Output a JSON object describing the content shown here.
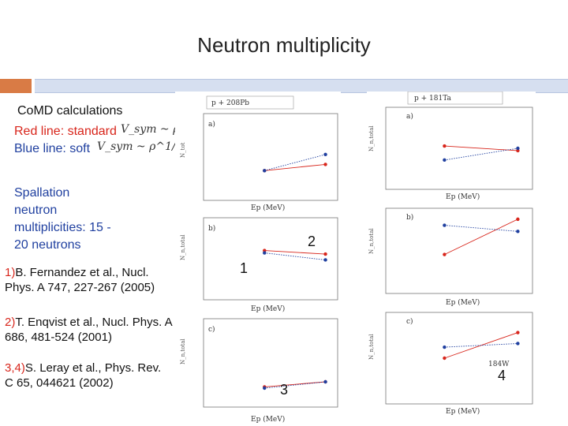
{
  "slide": {
    "title": "Neutron multiplicity",
    "model": "CoMD calculations",
    "red_line": "Red line: standard",
    "blue_line": "Blue line: soft",
    "spallation": [
      "Spallation",
      "neutron",
      "multiplicities: 15 -",
      "20 neutrons"
    ],
    "refs": [
      {
        "num": "1)",
        "text": "B. Fernandez et al., Nucl. Phys. A 747, 227-267 (2005)"
      },
      {
        "num": "2)",
        "text": "T. Enqvist et al., Nucl. Phys. A  686, 481-524 (2001)"
      },
      {
        "num": "3,4)",
        "text": "S. Leray et al., Phys. Rev. C 65, 044621 (2002)"
      }
    ],
    "formula_standard": "V_sym ~ ρ",
    "formula_soft": "V_sym ~ ρ^1/2"
  },
  "markers": {
    "m1": "1",
    "m2": "2",
    "m3": "3",
    "m4": "4"
  },
  "left_plots": {
    "top_title": "p + 208Pb",
    "top_tag": "a)",
    "mid_tag": "b)",
    "bot_tag": "c)",
    "xlabel": "Ep (MeV)"
  },
  "right_plots": {
    "top_title": "p + 181Ta",
    "top_tag": "a)",
    "mid_tag": "b)",
    "bot_tag": "c)",
    "xlabel": "Ep (MeV)",
    "w_label": "184W"
  },
  "colors": {
    "red": "#d8261c",
    "blue": "#1f3f9f",
    "accent": "#d97b45",
    "band": "#d6dff0"
  },
  "chart_data": [
    {
      "type": "line",
      "title": "p + 208Pb",
      "xlabel": "Ep (MeV)",
      "ylabel": "Ntot",
      "xlim": [
        0,
        1100
      ],
      "ylim": [
        5,
        12
      ],
      "series": [
        {
          "name": "standard",
          "x": [
            500,
            1000
          ],
          "values": [
            7.4,
            7.9
          ],
          "color": "red"
        },
        {
          "name": "soft",
          "x": [
            500,
            1000
          ],
          "values": [
            7.4,
            8.7
          ],
          "color": "blue"
        }
      ]
    },
    {
      "type": "line",
      "title": "",
      "xlabel": "Ep (MeV)",
      "ylabel": "Nn,total",
      "xlim": [
        0,
        1100
      ],
      "ylim": [
        5,
        12
      ],
      "series": [
        {
          "name": "standard",
          "x": [
            500,
            1000
          ],
          "values": [
            9.2,
            8.9
          ],
          "color": "red"
        },
        {
          "name": "soft",
          "x": [
            500,
            1000
          ],
          "values": [
            9.0,
            8.4
          ],
          "color": "blue"
        }
      ]
    },
    {
      "type": "line",
      "title": "",
      "xlabel": "Ep (MeV)",
      "ylabel": "Nn,total",
      "xlim": [
        0,
        1100
      ],
      "ylim": [
        15,
        22
      ],
      "series": [
        {
          "name": "standard",
          "x": [
            500,
            1000
          ],
          "values": [
            16.6,
            17.0
          ],
          "color": "red"
        },
        {
          "name": "soft",
          "x": [
            500,
            1000
          ],
          "values": [
            16.5,
            17.0
          ],
          "color": "blue"
        }
      ]
    },
    {
      "type": "line",
      "title": "p + 181Ta",
      "xlabel": "Ep (MeV)",
      "ylabel": "Nn,total",
      "xlim": [
        100,
        1100
      ],
      "ylim": [
        5,
        12
      ],
      "series": [
        {
          "name": "standard",
          "x": [
            500,
            1000
          ],
          "values": [
            8.7,
            8.3
          ],
          "color": "red"
        },
        {
          "name": "soft",
          "x": [
            500,
            1000
          ],
          "values": [
            7.5,
            8.5
          ],
          "color": "blue"
        }
      ]
    },
    {
      "type": "line",
      "title": "",
      "xlabel": "Ep (MeV)",
      "ylabel": "Nn,total",
      "xlim": [
        100,
        1100
      ],
      "ylim": [
        5,
        12
      ],
      "series": [
        {
          "name": "standard",
          "x": [
            500,
            1000
          ],
          "values": [
            8.2,
            11.1
          ],
          "color": "red"
        },
        {
          "name": "soft",
          "x": [
            500,
            1000
          ],
          "values": [
            10.6,
            10.1
          ],
          "color": "blue"
        }
      ]
    },
    {
      "type": "line",
      "title": "",
      "xlabel": "Ep (MeV)",
      "ylabel": "Nn,total",
      "xlim": [
        100,
        1100
      ],
      "ylim": [
        12,
        22
      ],
      "series": [
        {
          "name": "standard",
          "x": [
            500,
            1000
          ],
          "values": [
            17.0,
            19.8
          ],
          "color": "red"
        },
        {
          "name": "soft",
          "x": [
            500,
            1000
          ],
          "values": [
            18.2,
            18.6
          ],
          "color": "blue"
        }
      ]
    }
  ]
}
